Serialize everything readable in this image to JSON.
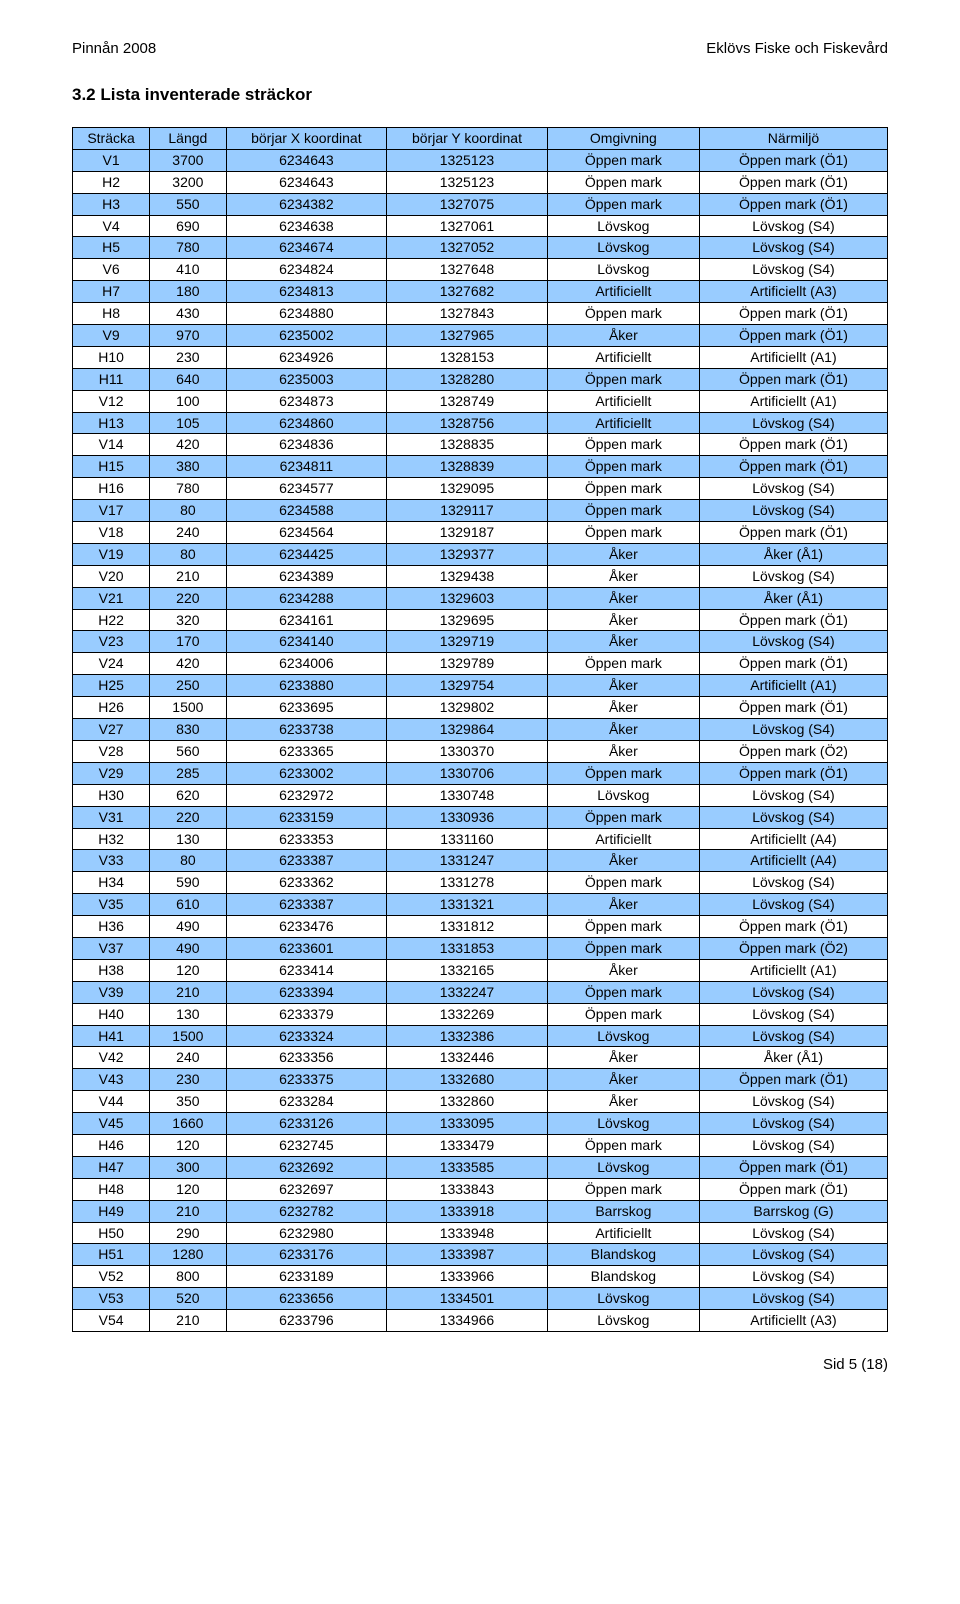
{
  "header": {
    "left": "Pinnån 2008",
    "right": "Eklövs Fiske och Fiskevård"
  },
  "section_title": "3.2    Lista inventerade sträckor",
  "footer": "Sid 5 (18)",
  "table": {
    "header_bg": "#99ccff",
    "row_colors": [
      "#99ccff",
      "#ffffff"
    ],
    "columns": [
      "Sträcka",
      "Längd",
      "börjar X koordinat",
      "börjar Y koordinat",
      "Omgivning",
      "Närmiljö"
    ],
    "rows": [
      [
        "V1",
        "3700",
        "6234643",
        "1325123",
        "Öppen mark",
        "Öppen mark (Ö1)"
      ],
      [
        "H2",
        "3200",
        "6234643",
        "1325123",
        "Öppen mark",
        "Öppen mark (Ö1)"
      ],
      [
        "H3",
        "550",
        "6234382",
        "1327075",
        "Öppen mark",
        "Öppen mark (Ö1)"
      ],
      [
        "V4",
        "690",
        "6234638",
        "1327061",
        "Lövskog",
        "Lövskog (S4)"
      ],
      [
        "H5",
        "780",
        "6234674",
        "1327052",
        "Lövskog",
        "Lövskog (S4)"
      ],
      [
        "V6",
        "410",
        "6234824",
        "1327648",
        "Lövskog",
        "Lövskog (S4)"
      ],
      [
        "H7",
        "180",
        "6234813",
        "1327682",
        "Artificiellt",
        "Artificiellt (A3)"
      ],
      [
        "H8",
        "430",
        "6234880",
        "1327843",
        "Öppen mark",
        "Öppen mark (Ö1)"
      ],
      [
        "V9",
        "970",
        "6235002",
        "1327965",
        "Åker",
        "Öppen mark (Ö1)"
      ],
      [
        "H10",
        "230",
        "6234926",
        "1328153",
        "Artificiellt",
        "Artificiellt (A1)"
      ],
      [
        "H11",
        "640",
        "6235003",
        "1328280",
        "Öppen mark",
        "Öppen mark (Ö1)"
      ],
      [
        "V12",
        "100",
        "6234873",
        "1328749",
        "Artificiellt",
        "Artificiellt (A1)"
      ],
      [
        "H13",
        "105",
        "6234860",
        "1328756",
        "Artificiellt",
        "Lövskog (S4)"
      ],
      [
        "V14",
        "420",
        "6234836",
        "1328835",
        "Öppen mark",
        "Öppen mark (Ö1)"
      ],
      [
        "H15",
        "380",
        "6234811",
        "1328839",
        "Öppen mark",
        "Öppen mark (Ö1)"
      ],
      [
        "H16",
        "780",
        "6234577",
        "1329095",
        "Öppen mark",
        "Lövskog (S4)"
      ],
      [
        "V17",
        "80",
        "6234588",
        "1329117",
        "Öppen mark",
        "Lövskog (S4)"
      ],
      [
        "V18",
        "240",
        "6234564",
        "1329187",
        "Öppen mark",
        "Öppen mark (Ö1)"
      ],
      [
        "V19",
        "80",
        "6234425",
        "1329377",
        "Åker",
        "Åker (Å1)"
      ],
      [
        "V20",
        "210",
        "6234389",
        "1329438",
        "Åker",
        "Lövskog (S4)"
      ],
      [
        "V21",
        "220",
        "6234288",
        "1329603",
        "Åker",
        "Åker (Å1)"
      ],
      [
        "H22",
        "320",
        "6234161",
        "1329695",
        "Åker",
        "Öppen mark (Ö1)"
      ],
      [
        "V23",
        "170",
        "6234140",
        "1329719",
        "Åker",
        "Lövskog (S4)"
      ],
      [
        "V24",
        "420",
        "6234006",
        "1329789",
        "Öppen mark",
        "Öppen mark (Ö1)"
      ],
      [
        "H25",
        "250",
        "6233880",
        "1329754",
        "Åker",
        "Artificiellt (A1)"
      ],
      [
        "H26",
        "1500",
        "6233695",
        "1329802",
        "Åker",
        "Öppen mark (Ö1)"
      ],
      [
        "V27",
        "830",
        "6233738",
        "1329864",
        "Åker",
        "Lövskog (S4)"
      ],
      [
        "V28",
        "560",
        "6233365",
        "1330370",
        "Åker",
        "Öppen mark (Ö2)"
      ],
      [
        "V29",
        "285",
        "6233002",
        "1330706",
        "Öppen mark",
        "Öppen mark (Ö1)"
      ],
      [
        "H30",
        "620",
        "6232972",
        "1330748",
        "Lövskog",
        "Lövskog (S4)"
      ],
      [
        "V31",
        "220",
        "6233159",
        "1330936",
        "Öppen mark",
        "Lövskog (S4)"
      ],
      [
        "H32",
        "130",
        "6233353",
        "1331160",
        "Artificiellt",
        "Artificiellt (A4)"
      ],
      [
        "V33",
        "80",
        "6233387",
        "1331247",
        "Åker",
        "Artificiellt (A4)"
      ],
      [
        "H34",
        "590",
        "6233362",
        "1331278",
        "Öppen mark",
        "Lövskog (S4)"
      ],
      [
        "V35",
        "610",
        "6233387",
        "1331321",
        "Åker",
        "Lövskog (S4)"
      ],
      [
        "H36",
        "490",
        "6233476",
        "1331812",
        "Öppen mark",
        "Öppen mark (Ö1)"
      ],
      [
        "V37",
        "490",
        "6233601",
        "1331853",
        "Öppen mark",
        "Öppen mark (Ö2)"
      ],
      [
        "H38",
        "120",
        "6233414",
        "1332165",
        "Åker",
        "Artificiellt (A1)"
      ],
      [
        "V39",
        "210",
        "6233394",
        "1332247",
        "Öppen mark",
        "Lövskog (S4)"
      ],
      [
        "H40",
        "130",
        "6233379",
        "1332269",
        "Öppen mark",
        "Lövskog (S4)"
      ],
      [
        "H41",
        "1500",
        "6233324",
        "1332386",
        "Lövskog",
        "Lövskog (S4)"
      ],
      [
        "V42",
        "240",
        "6233356",
        "1332446",
        "Åker",
        "Åker (Å1)"
      ],
      [
        "V43",
        "230",
        "6233375",
        "1332680",
        "Åker",
        "Öppen mark (Ö1)"
      ],
      [
        "V44",
        "350",
        "6233284",
        "1332860",
        "Åker",
        "Lövskog (S4)"
      ],
      [
        "V45",
        "1660",
        "6233126",
        "1333095",
        "Lövskog",
        "Lövskog (S4)"
      ],
      [
        "H46",
        "120",
        "6232745",
        "1333479",
        "Öppen mark",
        "Lövskog (S4)"
      ],
      [
        "H47",
        "300",
        "6232692",
        "1333585",
        "Lövskog",
        "Öppen mark (Ö1)"
      ],
      [
        "H48",
        "120",
        "6232697",
        "1333843",
        "Öppen mark",
        "Öppen mark (Ö1)"
      ],
      [
        "H49",
        "210",
        "6232782",
        "1333918",
        "Barrskog",
        "Barrskog (G)"
      ],
      [
        "H50",
        "290",
        "6232980",
        "1333948",
        "Artificiellt",
        "Lövskog (S4)"
      ],
      [
        "H51",
        "1280",
        "6233176",
        "1333987",
        "Blandskog",
        "Lövskog (S4)"
      ],
      [
        "V52",
        "800",
        "6233189",
        "1333966",
        "Blandskog",
        "Lövskog (S4)"
      ],
      [
        "V53",
        "520",
        "6233656",
        "1334501",
        "Lövskog",
        "Lövskog (S4)"
      ],
      [
        "V54",
        "210",
        "6233796",
        "1334966",
        "Lövskog",
        "Artificiellt (A3)"
      ]
    ]
  }
}
